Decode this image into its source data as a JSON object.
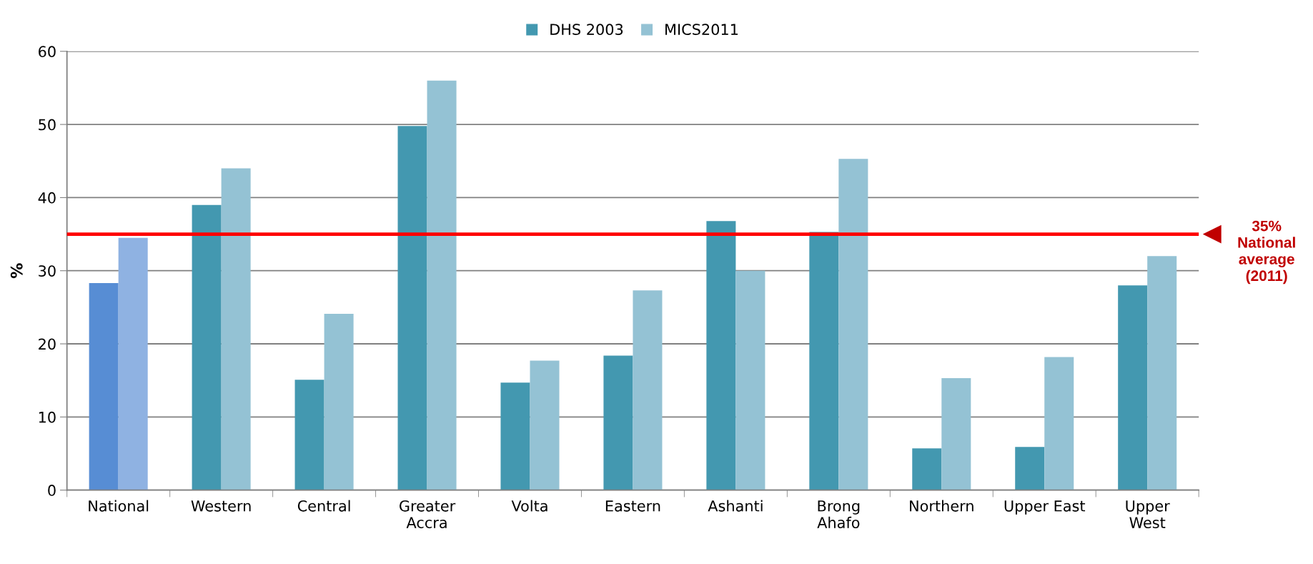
{
  "chart_data": {
    "type": "bar",
    "ylabel": "%",
    "categories": [
      "National",
      "Western",
      "Central",
      "Greater\nAccra",
      "Volta",
      "Eastern",
      "Ashanti",
      "Brong\nAhafo",
      "Northern",
      "Upper East",
      "Upper\nWest"
    ],
    "series": [
      {
        "name": "DHS 2003",
        "color": "#4398b0",
        "colors": [
          "#578dd4",
          "#4398b0",
          "#4398b0",
          "#4398b0",
          "#4398b0",
          "#4398b0",
          "#4398b0",
          "#4398b0",
          "#4398b0",
          "#4398b0",
          "#4398b0"
        ],
        "values": [
          28.3,
          39.0,
          15.1,
          49.8,
          14.7,
          18.4,
          36.8,
          35.3,
          5.7,
          5.9,
          28.0
        ]
      },
      {
        "name": "MICS2011",
        "color": "#94c2d4",
        "colors": [
          "#8fb2e2",
          "#94c2d4",
          "#94c2d4",
          "#94c2d4",
          "#94c2d4",
          "#94c2d4",
          "#94c2d4",
          "#94c2d4",
          "#94c2d4",
          "#94c2d4",
          "#94c2d4"
        ],
        "values": [
          34.5,
          44.0,
          24.1,
          56.0,
          17.7,
          27.3,
          30.0,
          45.3,
          15.3,
          18.2,
          32.0
        ]
      }
    ],
    "ylim": [
      0,
      60
    ],
    "yticks": [
      0,
      10,
      20,
      30,
      40,
      50,
      60
    ],
    "grid": "y",
    "legend": "top",
    "ref_lines": [
      {
        "axis": "y",
        "value": 35,
        "label": "35%\nNational\naverage\n(2011)",
        "color": "#ff0000"
      }
    ]
  }
}
